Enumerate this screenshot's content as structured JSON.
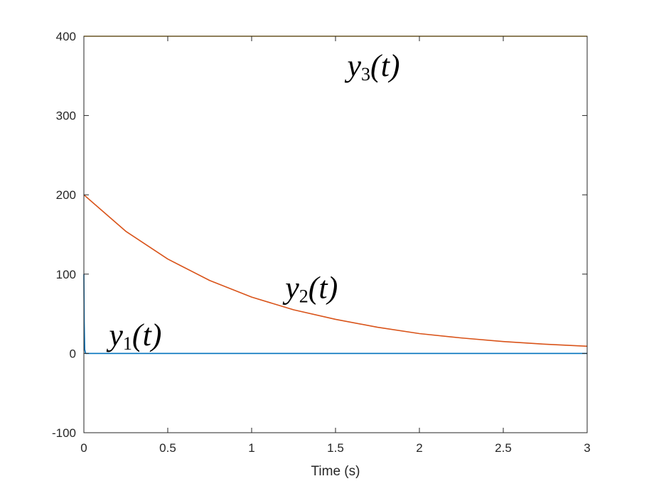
{
  "chart_data": {
    "type": "line",
    "xlabel": "Time (s)",
    "ylabel": "",
    "xlim": [
      0,
      3
    ],
    "ylim": [
      -100,
      400
    ],
    "xticks": [
      0,
      0.5,
      1,
      1.5,
      2,
      2.5,
      3
    ],
    "yticks": [
      -100,
      0,
      100,
      200,
      300,
      400
    ],
    "xtick_labels": [
      "0",
      "0.5",
      "1",
      "1.5",
      "2",
      "2.5",
      "3"
    ],
    "ytick_labels": [
      "-100",
      "0",
      "100",
      "200",
      "300",
      "400"
    ],
    "grid": false,
    "series": [
      {
        "label_base": "y",
        "label_sub": "1",
        "label_arg": "(t)",
        "color": "#0072BD",
        "x": [
          0,
          0.002,
          0.005,
          0.01,
          0.05,
          0.1,
          0.5,
          1,
          1.5,
          2,
          2.5,
          3
        ],
        "y": [
          100,
          40,
          5,
          0,
          0,
          0,
          0,
          0,
          0,
          0,
          0,
          0
        ]
      },
      {
        "label_base": "y",
        "label_sub": "2",
        "label_arg": "(t)",
        "color": "#D95319",
        "x": [
          0,
          0.25,
          0.5,
          0.75,
          1,
          1.25,
          1.5,
          1.75,
          2,
          2.25,
          2.5,
          2.75,
          3
        ],
        "y": [
          200,
          154,
          119,
          92,
          71,
          55,
          43,
          33,
          25,
          19.5,
          15,
          11.6,
          9
        ]
      },
      {
        "label_base": "y",
        "label_sub": "3",
        "label_arg": "(t)",
        "color": "#EDB120",
        "x": [
          0,
          0.5,
          1,
          1.5,
          2,
          2.5,
          3
        ],
        "y": [
          400,
          400,
          400,
          400,
          400,
          400,
          400
        ]
      }
    ],
    "annotations": [
      {
        "series": 0,
        "x": 0.15,
        "y": 10
      },
      {
        "series": 1,
        "x": 1.2,
        "y": 70
      },
      {
        "series": 2,
        "x": 1.57,
        "y": 350
      }
    ]
  }
}
